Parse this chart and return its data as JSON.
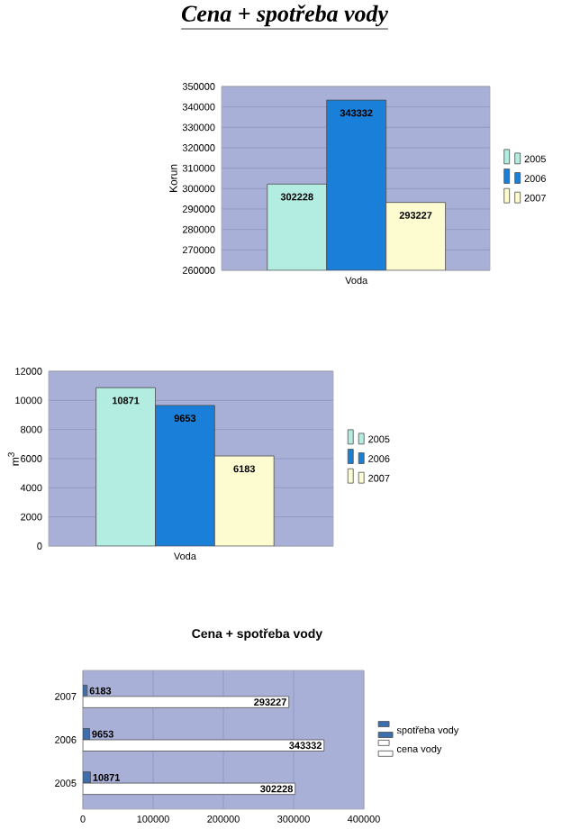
{
  "chart_data": [
    {
      "type": "bar",
      "title": "Cena + spotřeba vody",
      "ylabel": "Korun",
      "categories": [
        "Voda"
      ],
      "series": [
        {
          "name": "2005",
          "color": "#b3ece0",
          "values": [
            302228
          ]
        },
        {
          "name": "2006",
          "color": "#1a7fd8",
          "values": [
            343332
          ]
        },
        {
          "name": "2007",
          "color": "#fdfbd0",
          "values": [
            293227
          ]
        }
      ],
      "ylim": [
        260000,
        350000
      ],
      "yticks": [
        260000,
        270000,
        280000,
        290000,
        300000,
        310000,
        320000,
        330000,
        340000,
        350000
      ],
      "grid": "y",
      "legend": "right",
      "data_labels": true
    },
    {
      "type": "bar",
      "ylabel": "m$^{3}$",
      "categories": [
        "Voda"
      ],
      "series": [
        {
          "name": "2005",
          "color": "#b3ece0",
          "values": [
            10871
          ]
        },
        {
          "name": "2006",
          "color": "#1a7fd8",
          "values": [
            9653
          ]
        },
        {
          "name": "2007",
          "color": "#fdfbd0",
          "values": [
            6183
          ]
        }
      ],
      "ylim": [
        0,
        12000
      ],
      "yticks": [
        0,
        2000,
        4000,
        6000,
        8000,
        10000,
        12000
      ],
      "grid": "y",
      "legend": "right",
      "data_labels": true
    },
    {
      "type": "bar",
      "orientation": "horizontal",
      "title": "Cena + spotřeba vody",
      "categories": [
        "2007",
        "2006",
        "2005"
      ],
      "series": [
        {
          "name": "spotřeba vody",
          "color": "#3d6fae",
          "values": [
            6183,
            9653,
            10871
          ]
        },
        {
          "name": "cena vody",
          "color": "#ffffff",
          "values": [
            293227,
            343332,
            302228
          ]
        }
      ],
      "xlim": [
        0,
        400000
      ],
      "xticks": [
        0,
        100000,
        200000,
        300000,
        400000
      ],
      "grid": "x",
      "legend": "right",
      "data_labels": true
    }
  ]
}
